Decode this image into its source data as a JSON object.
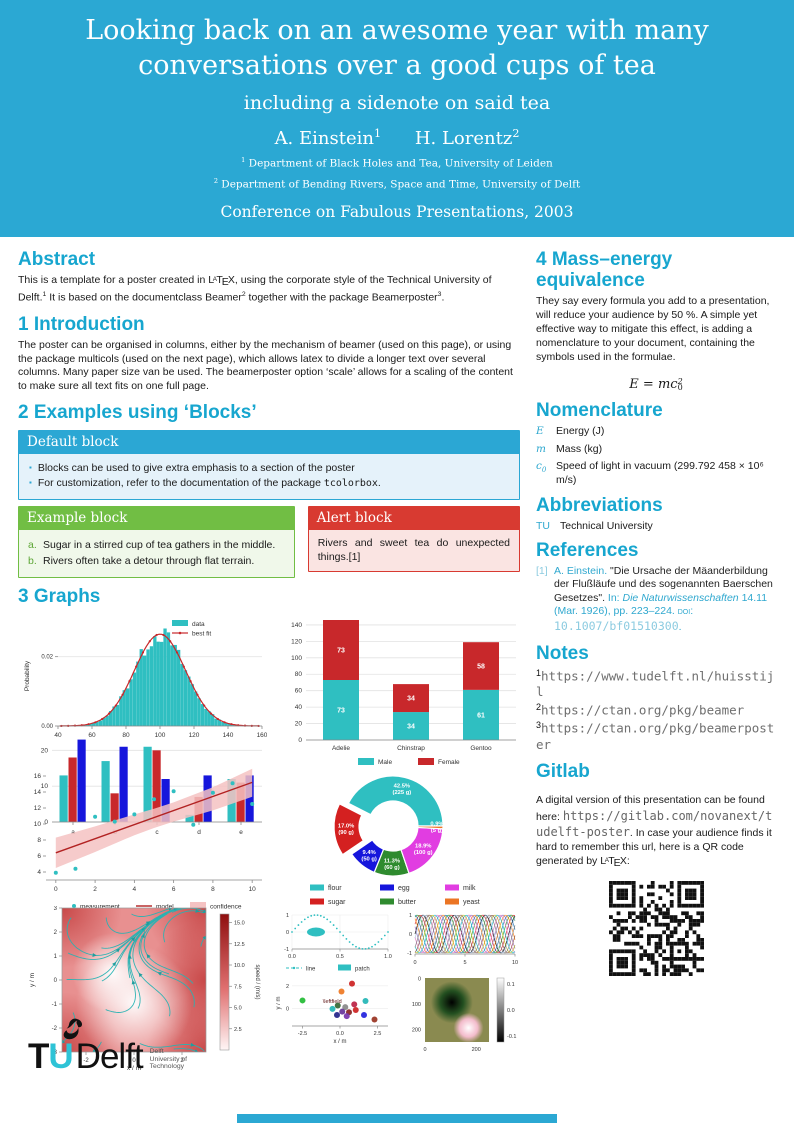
{
  "palette": {
    "cyan": "#2BA8D3",
    "heading": "#17A6CF",
    "teal": "#2FBFC1",
    "red": "#C8282B",
    "blue": "#1616DC",
    "pie_red": "#D42020",
    "magenta": "#E13DE1",
    "orange": "#EB7524",
    "pie_green": "#2F8B2F",
    "band_pink": "#F5C2C2",
    "green_block": "#71BE44",
    "red_block": "#D83A31"
  },
  "header": {
    "title_line1": "Looking back on an awesome year with many",
    "title_line2": "conversations over a good cups of tea",
    "subtitle": "including a sidenote on said tea",
    "authors": [
      {
        "name": "A. Einstein",
        "sup": "1"
      },
      {
        "name": "H. Lorentz",
        "sup": "2"
      }
    ],
    "affiliations": [
      {
        "sup": "1",
        "text": "Department of Black Holes and Tea, University of Leiden"
      },
      {
        "sup": "2",
        "text": "Department of Bending Rivers, Space and Time, University of Delft"
      }
    ],
    "conference": "Conference on Fabulous Presentations, 2003"
  },
  "left": {
    "abstract": {
      "heading": "Abstract",
      "segments": [
        {
          "t": "This is a template for a poster created in "
        },
        {
          "latex": true
        },
        {
          "t": ", using the corporate style of the Technical University of Delft."
        },
        {
          "sup": "1"
        },
        {
          "t": " It is based on the documentclass Beamer"
        },
        {
          "sup": "2"
        },
        {
          "t": " together with the package Beamerposter"
        },
        {
          "sup": "3"
        },
        {
          "t": "."
        }
      ]
    },
    "intro": {
      "heading": "1 Introduction",
      "text": "The poster can be organised in columns, either by the mechanism of beamer (used on this page), or using the package multicols (used on the next page), which allows latex to divide a longer text over several columns. Many paper size van be used. The beamerposter option ‘scale’ allows for a scaling of the content to make sure all text fits on one full page."
    },
    "blocks": {
      "heading": "2 Examples using ‘Blocks’",
      "default": {
        "title": "Default block",
        "item1": "Blocks can be used to give extra emphasis to a section of the poster",
        "item2_segments": [
          {
            "t": "For customization, refer to the documentation of the package "
          },
          {
            "t": "tcolorbox",
            "mono": true
          },
          {
            "t": "."
          }
        ]
      },
      "example": {
        "title": "Example block",
        "items": [
          {
            "marker": "a.",
            "text": "Sugar in a stirred cup of tea gathers in the middle."
          },
          {
            "marker": "b.",
            "text": "Rivers often take a detour through flat terrain."
          }
        ]
      },
      "alert": {
        "title": "Alert block",
        "text": "Rivers and sweet tea do unexpected things.[1]"
      }
    },
    "graphs": {
      "heading": "3 Graphs"
    }
  },
  "right": {
    "mass": {
      "heading": "4 Mass–energy equivalence",
      "text": "They say every formula you add to a presentation, will reduce your audience by 50 %. A simple yet effective way to mitigate this effect, is adding a nomenclature to your document, containing the symbols used in the formulae.",
      "formula": {
        "lhs": "E",
        "eq": "=",
        "base": "mc",
        "sup": "2",
        "sub": "0"
      }
    },
    "nomenclature": {
      "heading": "Nomenclature",
      "items": [
        {
          "symbol": "E",
          "symbol_sub": "",
          "definition": "Energy (J)"
        },
        {
          "symbol": "m",
          "symbol_sub": "",
          "definition": "Mass (kg)"
        },
        {
          "symbol": "c",
          "symbol_sub": "0",
          "definition": "Speed of light in vacuum (299.792 458 × 10⁶ m/s)"
        }
      ]
    },
    "abbreviations": {
      "heading": "Abbreviations",
      "items": [
        {
          "abbr": "TU",
          "definition": "Technical University"
        }
      ]
    },
    "references": {
      "heading": "References",
      "entries": [
        {
          "num": "[1]",
          "segments": [
            {
              "t": "A. Einstein. ",
              "cls": "c"
            },
            {
              "t": "\"Die Ursache der Mäanderbildung der Flußläufe und des sogenannten Baerschen Gesetzes\". ",
              "cls": "k"
            },
            {
              "t": "In: ",
              "cls": "c"
            },
            {
              "t": "Die Naturwissenschaften ",
              "cls": "ci"
            },
            {
              "t": "14.11 (Mar. 1926), pp. 223–224. ",
              "cls": "c"
            },
            {
              "t": "doi: ",
              "cls": "csc"
            },
            {
              "t": "10.1007/bf01510300",
              "cls": "cm"
            },
            {
              "t": ".",
              "cls": "c"
            }
          ]
        }
      ]
    },
    "notes": {
      "heading": "Notes",
      "items": [
        {
          "sup": "1",
          "url": "https://www.tudelft.nl/huisstijl"
        },
        {
          "sup": "2",
          "url": "https://ctan.org/pkg/beamer"
        },
        {
          "sup": "3",
          "url": "https://ctan.org/pkg/beamerposter"
        }
      ]
    },
    "gitlab": {
      "heading": "Gitlab",
      "segments": [
        {
          "t": "A digital version of this presentation can be found here: "
        },
        {
          "t": "https://gitlab.com/novanext/tudelft-poster",
          "mono": true,
          "link": true
        },
        {
          "t": ". In case your audience finds it hard to remember this url, here is a QR code generated by "
        },
        {
          "latex": true
        },
        {
          "t": ":"
        }
      ]
    }
  },
  "footer": {
    "t": "T",
    "u": "U",
    "delft": "Delft",
    "sub": [
      "Delft",
      "University of",
      "Technology"
    ]
  },
  "chart_data": [
    {
      "id": "histogram",
      "type": "histogram+line",
      "ylabel": "Probability",
      "x_ticks": [
        40,
        60,
        80,
        100,
        120,
        140,
        160
      ],
      "y_ticks": [
        "0.00",
        "0.02"
      ],
      "xlim": [
        40,
        160
      ],
      "ylim": [
        0,
        0.03
      ],
      "gauss": {
        "mean": 100,
        "std": 15,
        "peak": 0.0265
      },
      "legend": [
        {
          "label": "data",
          "kind": "patch"
        },
        {
          "label": "best fit",
          "kind": "line-dot"
        }
      ]
    },
    {
      "id": "grouped-bar",
      "type": "bar",
      "categories": [
        "a",
        "b",
        "c",
        "d",
        "e"
      ],
      "series": [
        {
          "name": "series-teal",
          "color": "teal",
          "values": [
            13,
            17,
            21,
            2,
            12
          ]
        },
        {
          "name": "series-red",
          "color": "red",
          "values": [
            18,
            8,
            20,
            7,
            11
          ]
        },
        {
          "name": "series-blue",
          "color": "blue",
          "values": [
            23,
            21,
            12,
            13,
            13
          ]
        }
      ],
      "y_ticks": [
        0,
        10,
        20
      ],
      "ylim": [
        0,
        24
      ]
    },
    {
      "id": "stacked-bar",
      "type": "stacked-bar",
      "categories": [
        "Adelie",
        "Chinstrap",
        "Gentoo"
      ],
      "series": [
        {
          "name": "Male",
          "color": "teal",
          "values": [
            73,
            34,
            61
          ]
        },
        {
          "name": "Female",
          "color": "red",
          "values": [
            73,
            34,
            58
          ]
        }
      ],
      "y_ticks": [
        0,
        20,
        40,
        60,
        80,
        100,
        120,
        140
      ],
      "ylim": [
        0,
        146
      ],
      "legend": [
        "Male",
        "Female"
      ]
    },
    {
      "id": "regression",
      "type": "scatter+line+band",
      "points": [
        [
          0,
          3.9
        ],
        [
          1,
          4.4
        ],
        [
          2,
          10.9
        ],
        [
          3,
          10.3
        ],
        [
          4,
          11.2
        ],
        [
          5,
          13.1
        ],
        [
          6,
          14.1
        ],
        [
          7,
          9.9
        ],
        [
          8,
          13.9
        ],
        [
          9,
          15.1
        ],
        [
          10,
          12.5
        ]
      ],
      "model": [
        [
          0,
          6.4
        ],
        [
          10,
          15.2
        ]
      ],
      "band": {
        "x": [
          0,
          2,
          4,
          5,
          6,
          8,
          10
        ],
        "upper": [
          8.3,
          9.7,
          11.2,
          11.9,
          12.7,
          14.6,
          16.9
        ],
        "lower": [
          4.5,
          6.5,
          8.6,
          9.5,
          10.3,
          11.7,
          13.4
        ]
      },
      "x_ticks": [
        0,
        2,
        4,
        6,
        8,
        10
      ],
      "y_ticks": [
        4,
        6,
        8,
        10,
        12,
        14,
        16
      ],
      "xlim": [
        -0.5,
        10.5
      ],
      "ylim": [
        3,
        17
      ],
      "legend": [
        "measurement",
        "model",
        "confidence"
      ]
    },
    {
      "id": "donut",
      "type": "pie",
      "slices": [
        {
          "label": "flour",
          "pct": 42.5,
          "grams": 225,
          "color": "teal"
        },
        {
          "label": "sugar",
          "pct": 17.0,
          "grams": 90,
          "color": "pie_red",
          "explode": true
        },
        {
          "label": "egg",
          "pct": 9.4,
          "grams": 50,
          "color": "blue"
        },
        {
          "label": "butter",
          "pct": 11.3,
          "grams": 60,
          "color": "pie_green"
        },
        {
          "label": "milk",
          "pct": 18.9,
          "grams": 100,
          "color": "magenta"
        },
        {
          "label": "yeast",
          "pct": 0.9,
          "grams": 5,
          "color": "orange"
        }
      ],
      "legend_order": [
        "flour",
        "egg",
        "milk",
        "sugar",
        "butter",
        "yeast"
      ]
    },
    {
      "id": "streamplot",
      "type": "stream",
      "xlabel": "x / m",
      "ylabel": "y / m",
      "x_ticks": [
        -2,
        0,
        2
      ],
      "y_ticks": [
        -3,
        -2,
        -1,
        0,
        1,
        2,
        3
      ],
      "xlim": [
        -3,
        3
      ],
      "ylim": [
        -3,
        3
      ],
      "colorbar": {
        "label": "speed / (m/s)",
        "ticks": [
          2.5,
          5.0,
          7.5,
          10.0,
          12.5,
          15.0
        ],
        "range": [
          0,
          16
        ]
      }
    },
    {
      "id": "sine-patch",
      "type": "line",
      "x_ticks": [
        "0.0",
        "0.5",
        "1.0"
      ],
      "y_ticks": [
        1,
        0,
        -1
      ],
      "sine": {
        "amplitude": 1,
        "period": 1
      },
      "patch": {
        "cx": 0.25,
        "cy": 0,
        "rx": 0.09,
        "ry": 0.27
      },
      "legend": [
        "line",
        "patch"
      ]
    },
    {
      "id": "multi-sine",
      "type": "line",
      "x_ticks": [
        0,
        5,
        10
      ],
      "y_ticks": [
        1,
        0,
        -1
      ],
      "n_lines": 12,
      "cycles": 3.2,
      "colors": [
        "#000000",
        "#d62728",
        "#2ca02c",
        "#1f77b4",
        "#ff7f0e",
        "#9467bd",
        "#e377c2",
        "#17becf",
        "#bcbd22",
        "#8c564b",
        "#7f7f7f",
        "#aec7e8"
      ]
    },
    {
      "id": "scatter-field",
      "type": "scatter",
      "xlabel": "x / m",
      "ylabel": "y / m",
      "x_ticks": [
        "-2.5",
        "0.0",
        "2.5"
      ],
      "y_ticks": [
        0,
        2
      ],
      "annotation": "\\leftfield",
      "points": [
        [
          -2.5,
          0.7,
          "#22bb33"
        ],
        [
          0.8,
          2.2,
          "#cc2222"
        ],
        [
          0.1,
          1.5,
          "#ee7722"
        ],
        [
          1.7,
          0.65,
          "#22b5b5"
        ],
        [
          -0.15,
          0.25,
          "#336633"
        ],
        [
          0.35,
          0.1,
          "#888888"
        ],
        [
          0.95,
          0.35,
          "#bb2244"
        ],
        [
          -0.5,
          -0.05,
          "#22b5b5"
        ],
        [
          0.15,
          -0.3,
          "#663399"
        ],
        [
          0.6,
          -0.35,
          "#882222"
        ],
        [
          1.05,
          -0.15,
          "#cc2222"
        ],
        [
          -0.2,
          -0.6,
          "#222288"
        ],
        [
          0.45,
          -0.7,
          "#7733aa"
        ],
        [
          1.6,
          -0.6,
          "#2222dd"
        ],
        [
          2.3,
          -1.0,
          "#993322"
        ]
      ]
    },
    {
      "id": "imshow",
      "type": "heatmap",
      "x_ticks": [
        0,
        200
      ],
      "y_ticks": [
        0,
        100,
        200
      ],
      "extent": [
        0,
        250
      ],
      "colorbar": {
        "ticks": [
          "0.1",
          "0.0",
          "-0.1"
        ]
      }
    }
  ]
}
